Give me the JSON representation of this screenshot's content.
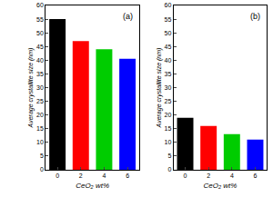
{
  "chart_data": [
    {
      "type": "bar",
      "annotation": "(a)",
      "x_label": "CeO₂ wt%",
      "y_label": "Average crystallite size (nm)",
      "categories": [
        "0",
        "2",
        "4",
        "6"
      ],
      "values": [
        55,
        47,
        44,
        40.5
      ],
      "colors": [
        "#000000",
        "#ff0000",
        "#00cc00",
        "#0000ff"
      ],
      "ylim": [
        0,
        60
      ],
      "yticks": [
        0,
        5,
        10,
        15,
        20,
        25,
        30,
        35,
        40,
        45,
        50,
        55,
        60
      ],
      "grid": false
    },
    {
      "type": "bar",
      "annotation": "(b)",
      "x_label": "CeO₂ wt%",
      "y_label": "Average crystallite size (nm)",
      "categories": [
        "0",
        "2",
        "4",
        "6"
      ],
      "values": [
        19,
        16,
        13,
        11
      ],
      "colors": [
        "#000000",
        "#ff0000",
        "#00cc00",
        "#0000ff"
      ],
      "ylim": [
        0,
        60
      ],
      "yticks": [
        0,
        5,
        10,
        15,
        20,
        25,
        30,
        35,
        40,
        45,
        50,
        55,
        60
      ],
      "grid": false
    }
  ]
}
